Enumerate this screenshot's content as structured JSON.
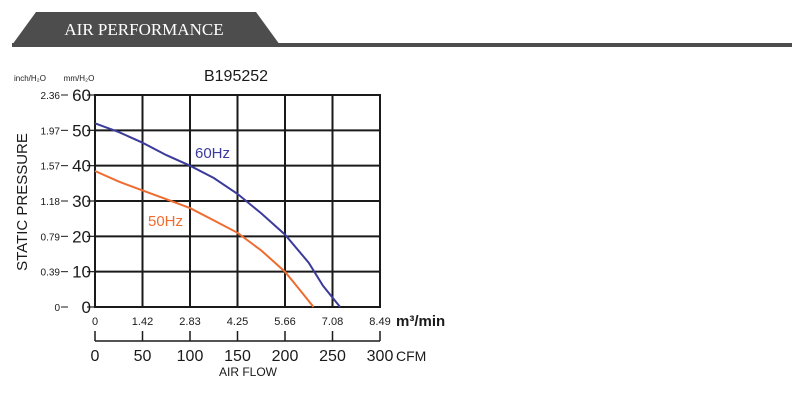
{
  "header": {
    "title": "AIR PERFORMANCE"
  },
  "colors": {
    "header_bg": "#4d4d4d",
    "header_text": "#ffffff",
    "series_60": "#3b3b9b",
    "series_50": "#ef6c30",
    "grid": "#1a1a1a"
  },
  "chart_data": {
    "type": "line",
    "title": "B195252",
    "ylabel": "STATIC PRESSURE",
    "xlabel": "AIR FLOW",
    "y_unit_inch": "inch/H₂O",
    "y_unit_mm": "mm/H₂O",
    "y_ticks_mm": [
      "0",
      "10",
      "20",
      "30",
      "40",
      "50",
      "60"
    ],
    "y_ticks_inch": [
      "0",
      "0.39",
      "0.79",
      "1.18",
      "1.57",
      "1.97",
      "2.36"
    ],
    "x_ticks_m3": [
      "0",
      "1.42",
      "2.83",
      "4.25",
      "5.66",
      "7.08",
      "8.49"
    ],
    "x_unit_m3": "m³/min",
    "x_ticks_cfm": [
      "0",
      "50",
      "100",
      "150",
      "200",
      "250",
      "300"
    ],
    "x_unit_cfm": "CFM",
    "xlim_cfm": [
      0,
      300
    ],
    "ylim_mm": [
      0,
      60
    ],
    "grid": true,
    "series": [
      {
        "name": "60Hz",
        "color": "#3b3b9b",
        "x": [
          0,
          25,
          50,
          75,
          100,
          125,
          150,
          175,
          200,
          225,
          240,
          258
        ],
        "y": [
          52,
          49.5,
          46.5,
          43,
          40,
          36.5,
          32,
          26.5,
          20.5,
          12.5,
          6,
          0
        ]
      },
      {
        "name": "50Hz",
        "color": "#ef6c30",
        "x": [
          0,
          25,
          50,
          75,
          100,
          125,
          150,
          175,
          200,
          215,
          230
        ],
        "y": [
          38.5,
          35.5,
          33,
          30.5,
          28,
          24.5,
          21,
          16,
          10,
          5,
          0
        ]
      }
    ]
  }
}
